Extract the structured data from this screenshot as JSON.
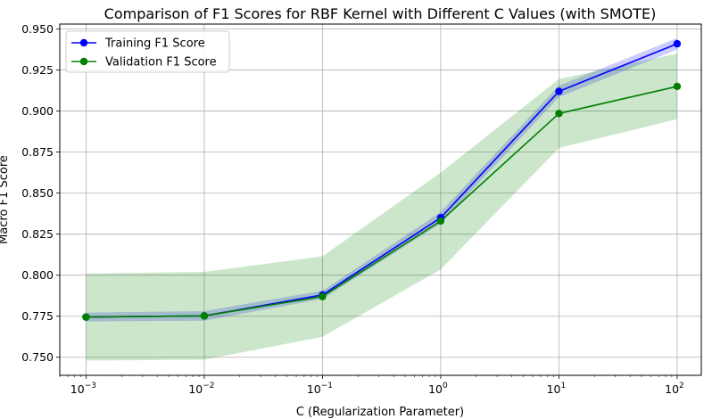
{
  "chart_data": {
    "type": "line",
    "title": "Comparison of F1 Scores for RBF Kernel with Different C Values (with SMOTE)",
    "xlabel": "C (Regularization Parameter)",
    "ylabel": "Macro F1 Score",
    "xscale": "log",
    "x": [
      0.001,
      0.01,
      0.1,
      1,
      10,
      100
    ],
    "xlim": [
      0.0006,
      160
    ],
    "ylim": [
      0.739,
      0.953
    ],
    "x_ticks": [
      {
        "value": 0.001,
        "base": "10",
        "exp": "−3"
      },
      {
        "value": 0.01,
        "base": "10",
        "exp": "−2"
      },
      {
        "value": 0.1,
        "base": "10",
        "exp": "−1"
      },
      {
        "value": 1,
        "base": "10",
        "exp": "0"
      },
      {
        "value": 10,
        "base": "10",
        "exp": "1"
      },
      {
        "value": 100,
        "base": "10",
        "exp": "2"
      }
    ],
    "y_ticks": [
      "0.750",
      "0.775",
      "0.800",
      "0.825",
      "0.850",
      "0.875",
      "0.900",
      "0.925",
      "0.950"
    ],
    "grid": true,
    "legend": "top-left",
    "series": [
      {
        "name": "Training F1 Score",
        "color": "#0000ff",
        "values": [
          0.7745,
          0.7752,
          0.788,
          0.835,
          0.912,
          0.941
        ],
        "band_low": [
          0.7718,
          0.7723,
          0.7855,
          0.8315,
          0.9085,
          0.9375
        ],
        "band_high": [
          0.7772,
          0.7781,
          0.7905,
          0.8385,
          0.9155,
          0.9445
        ]
      },
      {
        "name": "Validation F1 Score",
        "color": "#008000",
        "values": [
          0.7745,
          0.7752,
          0.787,
          0.833,
          0.8985,
          0.915
        ],
        "band_low": [
          0.748,
          0.7485,
          0.7625,
          0.8035,
          0.8775,
          0.895
        ],
        "band_high": [
          0.801,
          0.802,
          0.8115,
          0.8625,
          0.9195,
          0.935
        ]
      }
    ]
  }
}
